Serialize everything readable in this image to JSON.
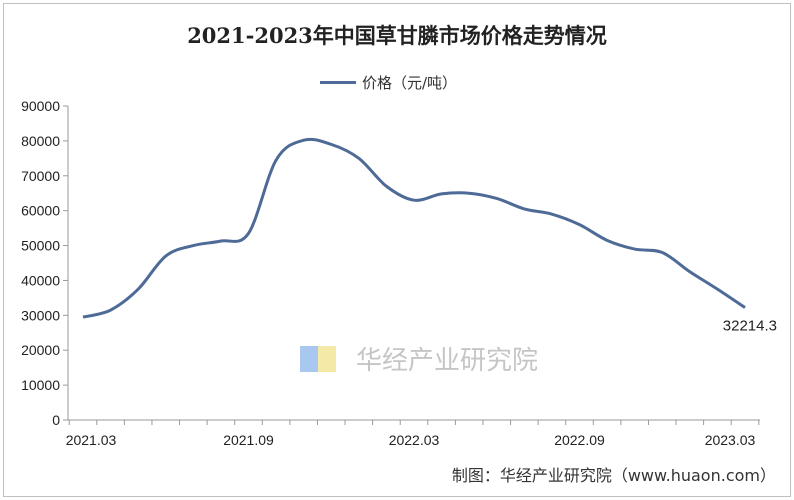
{
  "chart_data": {
    "type": "line",
    "title": "2021-2023年中国草甘膦市场价格走势情况",
    "legend": [
      "价格（元/吨）"
    ],
    "legend_position": "top-center",
    "xlabel": "",
    "ylabel": "",
    "ylim": [
      0,
      90000
    ],
    "yticks": [
      0,
      10000,
      20000,
      30000,
      40000,
      50000,
      60000,
      70000,
      80000,
      90000
    ],
    "categories": [
      "2021.03",
      "2021.04",
      "2021.05",
      "2021.06",
      "2021.07",
      "2021.08",
      "2021.09",
      "2021.10",
      "2021.11",
      "2021.12",
      "2022.01",
      "2022.02",
      "2022.03",
      "2022.04",
      "2022.05",
      "2022.06",
      "2022.07",
      "2022.08",
      "2022.09",
      "2022.10",
      "2022.11",
      "2022.12",
      "2023.01",
      "2023.02",
      "2023.03"
    ],
    "xtick_labels": [
      "2021.03",
      "2021.09",
      "2022.03",
      "2022.09",
      "2023.03"
    ],
    "series": [
      {
        "name": "价格（元/吨）",
        "color": "#4e6a96",
        "values": [
          29500,
          31500,
          37500,
          47000,
          50000,
          51300,
          53500,
          74500,
          80200,
          79000,
          75000,
          67000,
          63000,
          64800,
          65000,
          63500,
          60500,
          59000,
          56000,
          51500,
          49000,
          48000,
          42500,
          37500,
          32214.3
        ]
      }
    ],
    "data_labels": [
      "32214.3"
    ],
    "grid": false
  },
  "footer": "制图：华经产业研究院（www.huaon.com）",
  "watermark": "华经产业研究院"
}
